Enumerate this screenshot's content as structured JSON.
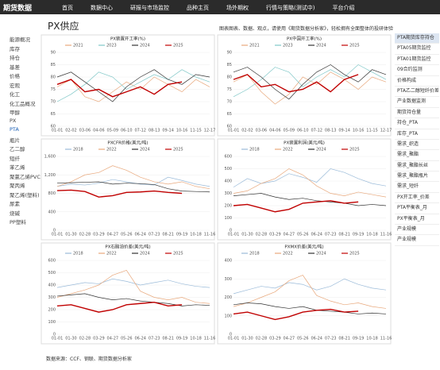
{
  "nav": {
    "brand": "期货数据",
    "items": [
      "首页",
      "数据中心",
      "研报与市场监控",
      "品种主页",
      "场外期权",
      "行情与策略(测试中)",
      "平台介绍"
    ]
  },
  "sidebar": [
    "能源概况",
    "库存",
    "持仓",
    "基差",
    "价格",
    "宏观",
    "化工",
    "化工品概况",
    "甲醇",
    "PX",
    "PTA",
    "瓶片",
    "乙二醇",
    "短纤",
    "苯乙烯",
    "聚氯乙烯PVC",
    "聚丙烯",
    "聚乙烯(塑料)",
    "尿素",
    "烧碱",
    "PP塑料"
  ],
  "page": {
    "title": "PX供应",
    "notice": "图表图表、数据、观点，请使用《期货数据分析家》，轻松拥有全面整体的投研体验",
    "source": "数据来源：CCF、钢联、期货数据分析家"
  },
  "right_menu": [
    "PTA期货库存持仓",
    "PTA05期货监控",
    "PTA01期货监控",
    "09合约监测",
    "价格构成",
    "PTA乙二醇短纤价差",
    "产业数据监测",
    "期货持仓量",
    "持仓_PTA",
    "库存_PTA",
    "需求_织造",
    "需求_聚酯",
    "需求_聚酯长丝",
    "需求_聚酯瓶片",
    "需求_短纤",
    "PX开工率_价差",
    "PTA平衡表_月",
    "PX平衡表_月",
    "产业规模",
    "产业规模"
  ],
  "chart_data": [
    {
      "type": "line",
      "title": "PX装置开工率(%)",
      "categories": [
        "01-01",
        "02-02",
        "03-06",
        "04-06",
        "05-09",
        "06-10",
        "07-12",
        "08-13",
        "09-14",
        "10-16",
        "11-15",
        "12-17"
      ],
      "ylim": [
        60,
        90
      ],
      "yticks": [
        60,
        65,
        70,
        75,
        80,
        85,
        90
      ],
      "series": [
        {
          "name": "2021",
          "color": "#e8a87c",
          "values": [
            76,
            79,
            72,
            70,
            74,
            78,
            75,
            80,
            77,
            74,
            79,
            76
          ]
        },
        {
          "name": "2023",
          "color": "#7fc7c7",
          "values": [
            70,
            73,
            77,
            82,
            80,
            75,
            78,
            81,
            79,
            83,
            80,
            78
          ]
        },
        {
          "name": "2024",
          "color": "#333333",
          "values": [
            80,
            82,
            78,
            74,
            70,
            76,
            80,
            83,
            79,
            77,
            81,
            80
          ]
        },
        {
          "name": "2025",
          "color": "#c00000",
          "values": [
            77,
            79,
            74,
            75,
            72,
            74,
            76,
            73,
            77,
            78,
            null,
            null
          ]
        }
      ]
    },
    {
      "type": "line",
      "title": "PX中国开工率(%)",
      "categories": [
        "01-01",
        "02-02",
        "03-06",
        "04-06",
        "05-09",
        "06-10",
        "07-12",
        "08-13",
        "09-14",
        "10-16",
        "11-15",
        "12-17"
      ],
      "ylim": [
        60,
        90
      ],
      "yticks": [
        60,
        65,
        70,
        75,
        80,
        85,
        90
      ],
      "series": [
        {
          "name": "2021",
          "color": "#e8a87c",
          "values": [
            78,
            81,
            74,
            69,
            73,
            80,
            77,
            82,
            79,
            75,
            80,
            78
          ]
        },
        {
          "name": "2023",
          "color": "#7fc7c7",
          "values": [
            72,
            75,
            79,
            84,
            82,
            76,
            80,
            83,
            80,
            85,
            82,
            79
          ]
        },
        {
          "name": "2024",
          "color": "#333333",
          "values": [
            82,
            84,
            80,
            75,
            71,
            77,
            82,
            85,
            81,
            78,
            83,
            81
          ]
        },
        {
          "name": "2025",
          "color": "#c00000",
          "values": [
            79,
            81,
            76,
            77,
            74,
            75,
            78,
            74,
            79,
            81,
            null,
            null
          ]
        }
      ]
    },
    {
      "type": "line",
      "title": "PXCFR价格(美元/吨)",
      "categories": [
        "01-01",
        "01-30",
        "02-28",
        "03-29",
        "04-27",
        "05-26",
        "06-24",
        "07-23",
        "08-21",
        "09-19",
        "10-18",
        "11-16"
      ],
      "ylim": [
        0,
        1600
      ],
      "yticks": [
        0,
        400,
        800,
        {
          "value": 1200,
          "label": "1,200"
        },
        {
          "value": 1600,
          "label": "1,600"
        }
      ],
      "series": [
        {
          "name": "2018",
          "color": "#9bbbd9",
          "values": [
            950,
            1000,
            980,
            1020,
            1100,
            1050,
            1000,
            980,
            1150,
            1080,
            1000,
            950
          ]
        },
        {
          "name": "2022",
          "color": "#e8a87c",
          "values": [
            950,
            1050,
            1200,
            1250,
            1400,
            1300,
            1150,
            1050,
            1000,
            1050,
            950,
            900
          ]
        },
        {
          "name": "2024",
          "color": "#333333",
          "values": [
            1020,
            1030,
            1040,
            1050,
            1000,
            1020,
            1010,
            990,
            900,
            850,
            840,
            830
          ]
        },
        {
          "name": "2025",
          "color": "#c00000",
          "values": [
            860,
            870,
            840,
            720,
            750,
            820,
            830,
            850,
            820,
            800,
            null,
            null
          ]
        }
      ]
    },
    {
      "type": "line",
      "title": "PX装置利润(美元/吨)",
      "categories": [
        "01-01",
        "01-30",
        "02-28",
        "03-29",
        "04-27",
        "05-26",
        "06-24",
        "07-23",
        "08-21",
        "09-19",
        "10-18",
        "11-16"
      ],
      "ylim": [
        0,
        600
      ],
      "yticks": [
        0,
        100,
        200,
        300,
        400,
        500,
        600
      ],
      "series": [
        {
          "name": "2018",
          "color": "#9bbbd9",
          "values": [
            350,
            420,
            380,
            400,
            460,
            430,
            390,
            500,
            470,
            420,
            380,
            360
          ]
        },
        {
          "name": "2022",
          "color": "#e8a87c",
          "values": [
            300,
            320,
            380,
            420,
            500,
            450,
            360,
            300,
            280,
            310,
            290,
            270
          ]
        },
        {
          "name": "2024",
          "color": "#333333",
          "values": [
            280,
            290,
            300,
            270,
            250,
            260,
            240,
            230,
            220,
            200,
            210,
            200
          ]
        },
        {
          "name": "2025",
          "color": "#c00000",
          "values": [
            200,
            210,
            180,
            150,
            170,
            220,
            230,
            240,
            220,
            230,
            null,
            null
          ]
        }
      ]
    },
    {
      "type": "line",
      "title": "PX石脑油价差(美元/吨)",
      "categories": [
        "01-01",
        "01-30",
        "02-28",
        "03-29",
        "04-27",
        "05-26",
        "06-24",
        "07-23",
        "08-21",
        "09-19",
        "10-18",
        "11-16"
      ],
      "ylim": [
        0,
        600
      ],
      "yticks": [
        0,
        100,
        200,
        300,
        400,
        500,
        600
      ],
      "series": [
        {
          "name": "2018",
          "color": "#9bbbd9",
          "values": [
            380,
            400,
            420,
            410,
            450,
            430,
            400,
            420,
            440,
            410,
            390,
            380
          ]
        },
        {
          "name": "2022",
          "color": "#e8a87c",
          "values": [
            300,
            330,
            360,
            400,
            480,
            520,
            350,
            300,
            280,
            300,
            260,
            250
          ]
        },
        {
          "name": "2024",
          "color": "#333333",
          "values": [
            310,
            320,
            330,
            300,
            280,
            290,
            270,
            260,
            250,
            230,
            240,
            235
          ]
        },
        {
          "name": "2025",
          "color": "#c00000",
          "values": [
            230,
            240,
            210,
            180,
            200,
            240,
            250,
            260,
            230,
            240,
            null,
            null
          ]
        }
      ]
    },
    {
      "type": "line",
      "title": "PXMX价差(美元/吨)",
      "categories": [
        "01-01",
        "01-30",
        "02-28",
        "03-29",
        "04-27",
        "05-26",
        "06-24",
        "07-23",
        "08-21",
        "09-19",
        "10-18",
        "11-16"
      ],
      "ylim": [
        0,
        400
      ],
      "yticks": [
        0,
        100,
        200,
        300,
        400
      ],
      "series": [
        {
          "name": "2018",
          "color": "#9bbbd9",
          "values": [
            220,
            240,
            260,
            250,
            280,
            270,
            240,
            260,
            300,
            270,
            250,
            240
          ]
        },
        {
          "name": "2022",
          "color": "#e8a87c",
          "values": [
            150,
            170,
            200,
            230,
            290,
            320,
            210,
            180,
            160,
            170,
            150,
            140
          ]
        },
        {
          "name": "2024",
          "color": "#333333",
          "values": [
            160,
            170,
            165,
            150,
            140,
            150,
            130,
            125,
            120,
            110,
            115,
            110
          ]
        },
        {
          "name": "2025",
          "color": "#c00000",
          "values": [
            110,
            120,
            100,
            80,
            95,
            120,
            130,
            135,
            120,
            125,
            null,
            null
          ]
        }
      ]
    }
  ]
}
